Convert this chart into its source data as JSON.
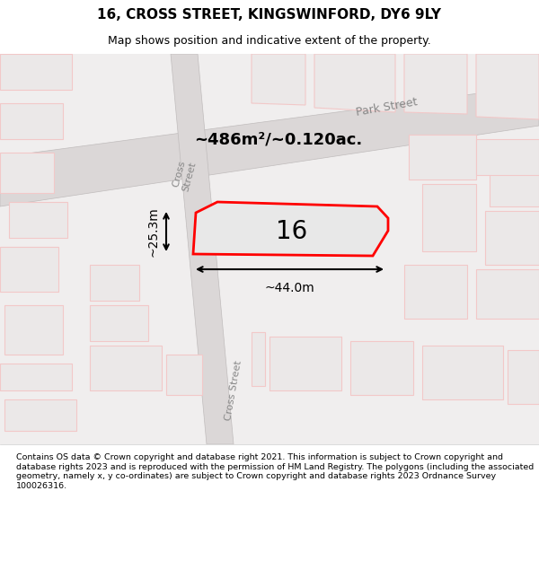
{
  "title": "16, CROSS STREET, KINGSWINFORD, DY6 9LY",
  "subtitle": "Map shows position and indicative extent of the property.",
  "footer": "Contains OS data © Crown copyright and database right 2021. This information is subject to Crown copyright and database rights 2023 and is reproduced with the permission of HM Land Registry. The polygons (including the associated geometry, namely x, y co-ordinates) are subject to Crown copyright and database rights 2023 Ordnance Survey 100026316.",
  "area_label": "~486m²/~0.120ac.",
  "property_number": "16",
  "width_label": "~44.0m",
  "height_label": "~25.3m",
  "bg_color": "#f5f5f5",
  "map_bg": "#f0eeee",
  "plot_color": "#ff0000",
  "plot_fill": "#e8e8e8",
  "street_label_park": "Park Street",
  "street_label_cross": "Cross Street",
  "street_label_cross2": "Cross Street"
}
